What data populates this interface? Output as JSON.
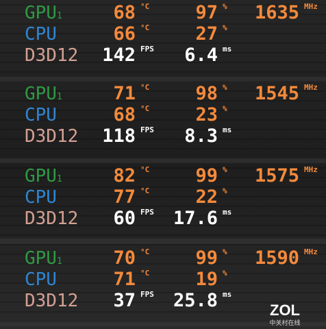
{
  "panels": [
    {
      "rows": [
        {
          "label": "GPU",
          "sub": "1",
          "cells": [
            {
              "value": 68,
              "unit": "°C"
            },
            {
              "value": 97,
              "unit": "%"
            },
            {
              "value": 1635,
              "unit": "MHz"
            }
          ]
        },
        {
          "label": "CPU",
          "cells": [
            {
              "value": 66,
              "unit": "°C"
            },
            {
              "value": 27,
              "unit": "%"
            }
          ]
        },
        {
          "label": "D3D12",
          "cells": [
            {
              "value": 142,
              "unit": "FPS"
            },
            {
              "value": 6.4,
              "unit": "ms"
            }
          ]
        }
      ]
    },
    {
      "rows": [
        {
          "label": "GPU",
          "sub": "1",
          "cells": [
            {
              "value": 71,
              "unit": "°C"
            },
            {
              "value": 98,
              "unit": "%"
            },
            {
              "value": 1545,
              "unit": "MHz"
            }
          ]
        },
        {
          "label": "CPU",
          "cells": [
            {
              "value": 68,
              "unit": "°C"
            },
            {
              "value": 23,
              "unit": "%"
            }
          ]
        },
        {
          "label": "D3D12",
          "cells": [
            {
              "value": 118,
              "unit": "FPS"
            },
            {
              "value": 8.3,
              "unit": "ms"
            }
          ]
        }
      ]
    },
    {
      "rows": [
        {
          "label": "GPU",
          "sub": "1",
          "cells": [
            {
              "value": 82,
              "unit": "°C"
            },
            {
              "value": 99,
              "unit": "%"
            },
            {
              "value": 1575,
              "unit": "MHz"
            }
          ]
        },
        {
          "label": "CPU",
          "cells": [
            {
              "value": 77,
              "unit": "°C"
            },
            {
              "value": 22,
              "unit": "%"
            }
          ]
        },
        {
          "label": "D3D12",
          "cells": [
            {
              "value": 60,
              "unit": "FPS"
            },
            {
              "value": 17.6,
              "unit": "ms"
            }
          ]
        }
      ]
    },
    {
      "rows": [
        {
          "label": "GPU",
          "sub": "1",
          "cells": [
            {
              "value": 70,
              "unit": "°C"
            },
            {
              "value": 99,
              "unit": "%"
            },
            {
              "value": 1590,
              "unit": "MHz"
            }
          ]
        },
        {
          "label": "CPU",
          "cells": [
            {
              "value": 71,
              "unit": "°C"
            },
            {
              "value": 19,
              "unit": "%"
            }
          ]
        },
        {
          "label": "D3D12",
          "cells": [
            {
              "value": 37,
              "unit": "FPS"
            },
            {
              "value": 25.8,
              "unit": "ms"
            }
          ]
        }
      ]
    }
  ],
  "watermark": {
    "logo": "ZOL",
    "text": "中关村在线"
  }
}
